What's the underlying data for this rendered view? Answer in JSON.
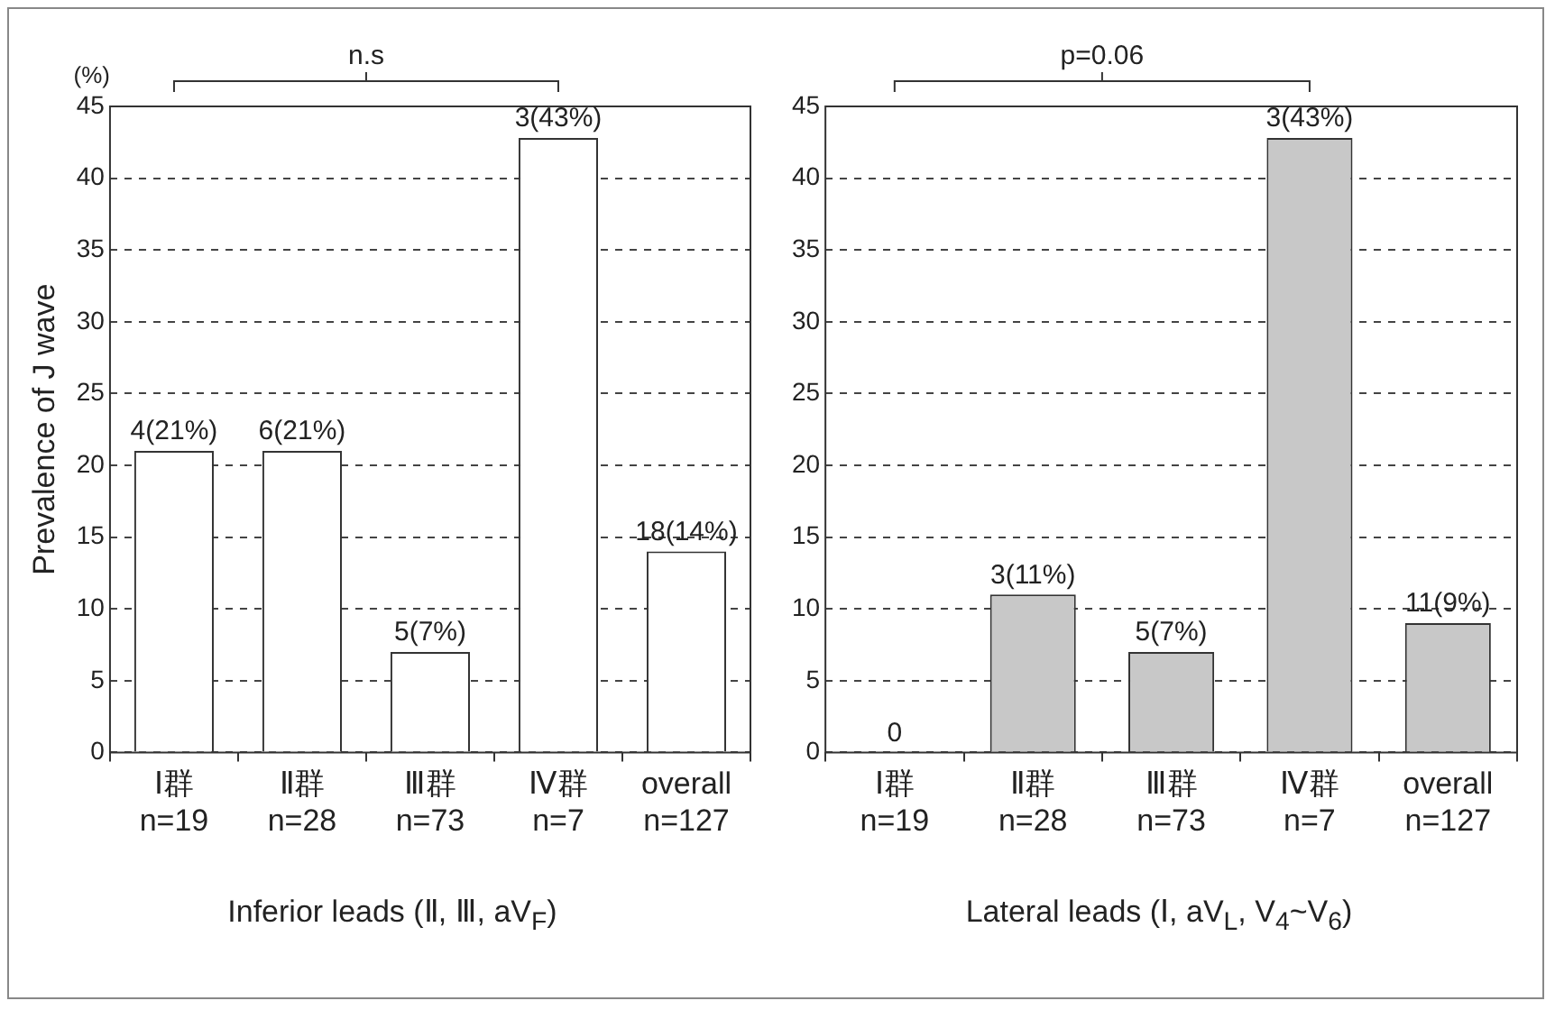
{
  "chart_data": [
    {
      "type": "bar",
      "categories": [
        "Ⅰ群\nn=19",
        "Ⅱ群\nn=28",
        "Ⅲ群\nn=73",
        "Ⅳ群\nn=7",
        "overall\nn=127"
      ],
      "values": [
        21,
        21,
        7,
        42.8,
        14
      ],
      "color": "#ffffff",
      "value_labels": [
        "4(21%)",
        "6(21%)",
        "5(7%)",
        "3(43%)",
        "18(14%)"
      ],
      "ylim": [
        0,
        45
      ],
      "yticks": [
        0,
        5,
        10,
        15,
        20,
        25,
        30,
        35,
        40,
        45
      ],
      "grid": "y",
      "xlabel": "Inferior leads (Ⅱ, Ⅲ, aV$_{F}$)",
      "ylabel": "Prevalence of J wave",
      "annotations": [
        "n.s",
        "(%)"
      ]
    },
    {
      "type": "bar",
      "categories": [
        "Ⅰ群\nn=19",
        "Ⅱ群\nn=28",
        "Ⅲ群\nn=73",
        "Ⅳ群\nn=7",
        "overall\nn=127"
      ],
      "values": [
        0,
        11,
        7,
        42.8,
        9
      ],
      "color": "#c8c8c8",
      "value_labels": [
        "0",
        "3(11%)",
        "5(7%)",
        "3(43%)",
        "11(9%)"
      ],
      "ylim": [
        0,
        45
      ],
      "yticks": [
        0,
        5,
        10,
        15,
        20,
        25,
        30,
        35,
        40,
        45
      ],
      "grid": "y",
      "xlabel": "Lateral leads (Ⅰ, aV$_{L}$, V$_{4}$~V$_{6}$)",
      "annotations": [
        "p=0.06"
      ]
    }
  ]
}
